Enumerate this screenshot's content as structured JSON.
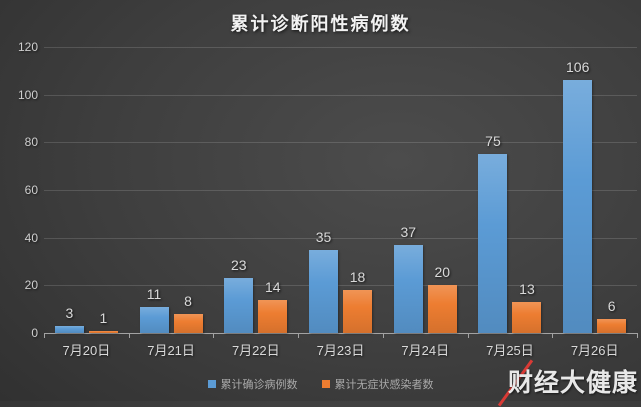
{
  "chart_data": {
    "type": "bar",
    "title": "累计诊断阳性病例数",
    "categories": [
      "7月20日",
      "7月21日",
      "7月22日",
      "7月23日",
      "7月24日",
      "7月25日",
      "7月26日"
    ],
    "series": [
      {
        "name": "累计确诊病例数",
        "color": "#5B9BD5",
        "values": [
          3,
          11,
          23,
          35,
          37,
          75,
          106
        ]
      },
      {
        "name": "累计无症状感染者数",
        "color": "#ED7D31",
        "values": [
          1,
          8,
          14,
          18,
          20,
          13,
          6
        ]
      }
    ],
    "xlabel": "",
    "ylabel": "",
    "ylim": [
      0,
      120
    ],
    "yticks": [
      0,
      20,
      40,
      60,
      80,
      100,
      120
    ],
    "grid": true,
    "legend_position": "bottom"
  },
  "watermark": {
    "text": "财经大健康",
    "accent_color": "#d93a35"
  },
  "colors": {
    "background": "#3e3e3e",
    "gridline": "#565656",
    "axis_line": "#a3a3a3",
    "label_text": "#d9d9d9",
    "legend_text": "#a8a8a8",
    "title_text": "#f2f2f2"
  }
}
